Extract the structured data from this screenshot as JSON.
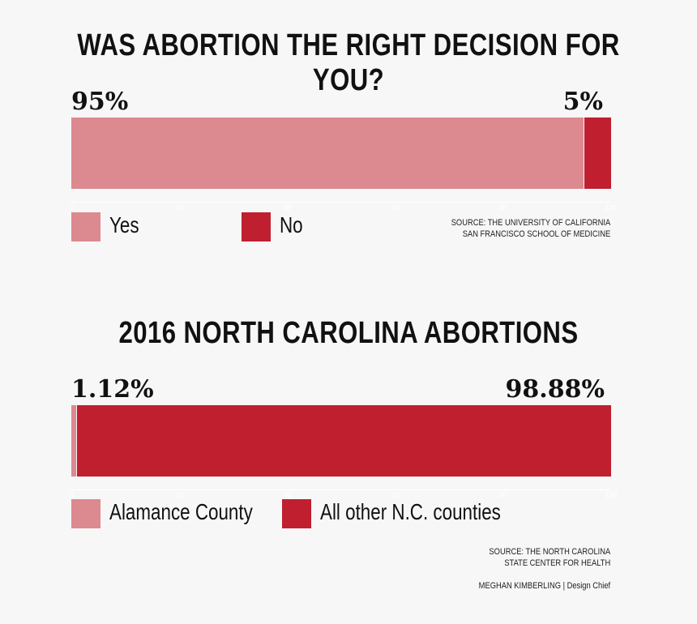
{
  "chart_data": [
    {
      "type": "bar",
      "stacked": true,
      "orientation": "horizontal",
      "title": "WAS ABORTION THE RIGHT DECISION FOR YOU?",
      "series": [
        {
          "name": "Yes",
          "value": 95,
          "label": "95%",
          "color": "#dc8990"
        },
        {
          "name": "No",
          "value": 5,
          "label": "5%",
          "color": "#c01f2f"
        }
      ],
      "xlim": [
        0,
        100
      ],
      "ticks": [
        "0",
        "20",
        "40",
        "60",
        "80",
        "100"
      ],
      "source": [
        "SOURCE: THE UNIVERSITY OF CALIFORNIA",
        "SAN FRANCISCO SCHOOL OF MEDICINE"
      ]
    },
    {
      "type": "bar",
      "stacked": true,
      "orientation": "horizontal",
      "title": "2016 NORTH CAROLINA ABORTIONS",
      "series": [
        {
          "name": "Alamance County",
          "value": 1.12,
          "label": "1.12%",
          "color": "#dc8990"
        },
        {
          "name": "All other N.C. counties",
          "value": 98.88,
          "label": "98.88%",
          "color": "#c01f2f"
        }
      ],
      "xlim": [
        0,
        100
      ],
      "ticks": [
        "0",
        "20",
        "40",
        "60",
        "80",
        "100"
      ],
      "source": [
        "SOURCE: THE NORTH CAROLINA",
        "STATE CENTER FOR HEALTH"
      ]
    }
  ],
  "credit": "MEGHAN KIMBERLING | Design Chief"
}
